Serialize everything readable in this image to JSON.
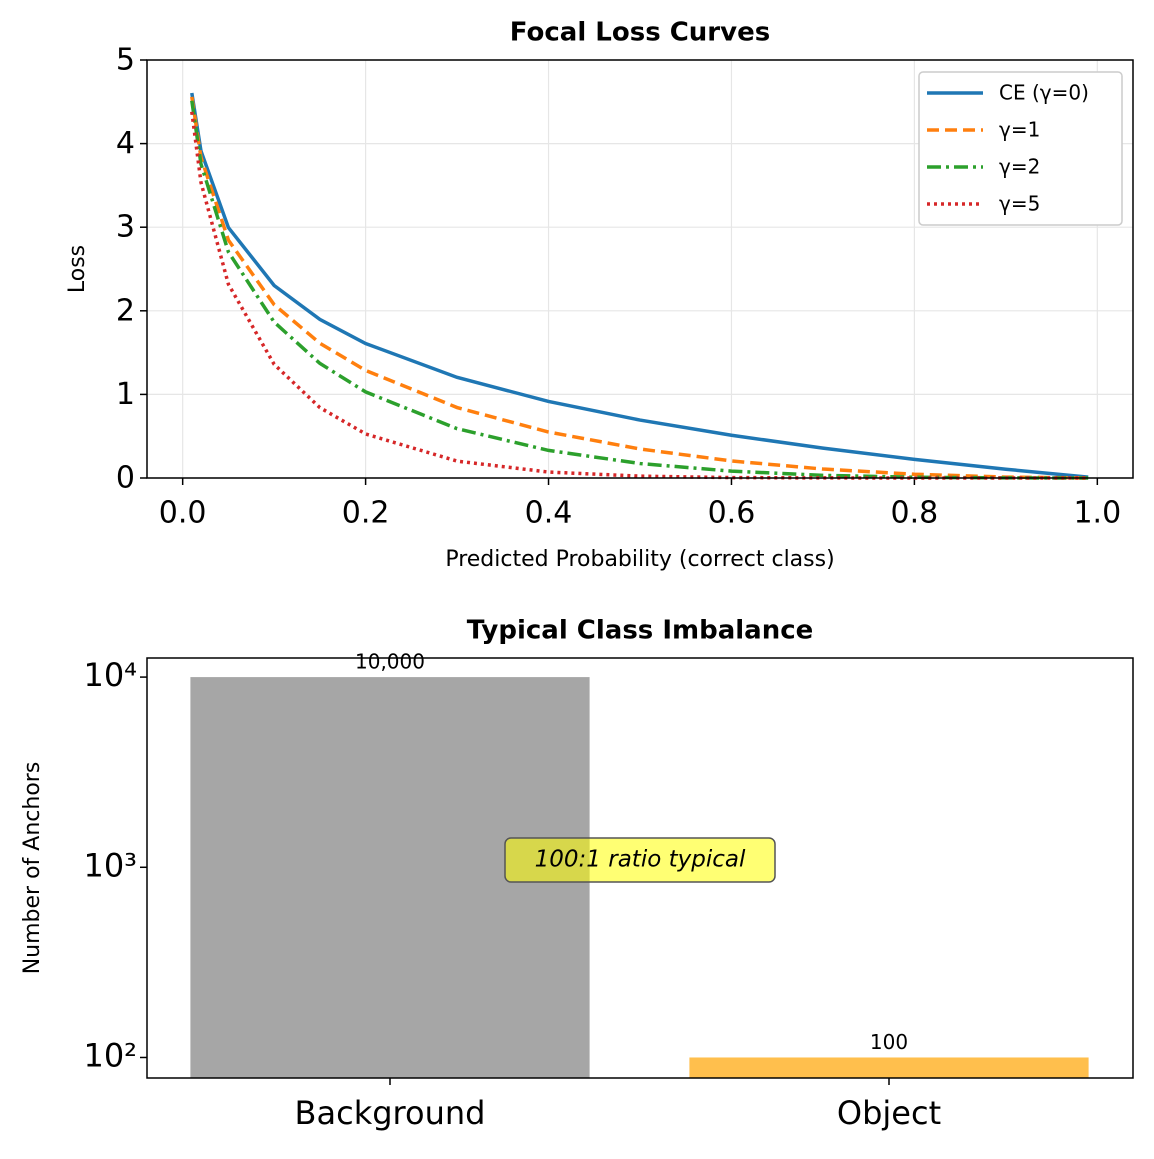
{
  "chart_data": [
    {
      "type": "line",
      "title": "Focal Loss Curves",
      "xlabel": "Predicted Probability (correct class)",
      "ylabel": "Loss",
      "x": [
        0.01,
        0.02,
        0.05,
        0.1,
        0.15,
        0.2,
        0.3,
        0.4,
        0.5,
        0.6,
        0.7,
        0.8,
        0.9,
        0.99
      ],
      "series": [
        {
          "name": "CE (γ=0)",
          "color": "#1f77b4",
          "linestyle": "solid",
          "values": [
            4.605,
            3.912,
            2.996,
            2.303,
            1.897,
            1.609,
            1.204,
            0.916,
            0.693,
            0.511,
            0.357,
            0.223,
            0.105,
            0.01
          ]
        },
        {
          "name": "γ=1",
          "color": "#ff7f0e",
          "linestyle": "dashed",
          "values": [
            4.559,
            3.834,
            2.846,
            2.073,
            1.612,
            1.287,
            0.843,
            0.55,
            0.347,
            0.204,
            0.107,
            0.045,
            0.011,
            0.0001
          ]
        },
        {
          "name": "γ=2",
          "color": "#2ca02c",
          "linestyle": "dashdot",
          "values": [
            4.513,
            3.757,
            2.704,
            1.865,
            1.371,
            1.03,
            0.59,
            0.33,
            0.173,
            0.082,
            0.032,
            0.009,
            0.001,
            0
          ]
        },
        {
          "name": "γ=5",
          "color": "#d62728",
          "linestyle": "dotted",
          "values": [
            4.38,
            3.536,
            2.318,
            1.36,
            0.842,
            0.527,
            0.202,
            0.071,
            0.022,
            0.005,
            0.001,
            0.0001,
            0,
            0
          ]
        }
      ],
      "xlim": [
        -0.039,
        1.039
      ],
      "xticks": [
        {
          "value": 0,
          "label": "0.0"
        },
        0.2,
        0.4,
        0.6,
        0.8,
        {
          "value": 1,
          "label": "1.0"
        }
      ],
      "ylim": [
        0,
        5
      ],
      "yticks": [
        0,
        1,
        2,
        3,
        4,
        5
      ],
      "grid": true,
      "legend": "upper right"
    },
    {
      "type": "bar",
      "title": "Typical Class Imbalance",
      "ylabel": "Number of Anchors",
      "categories": [
        "Background",
        "Object"
      ],
      "values": [
        10000,
        100
      ],
      "value_labels": [
        "10,000",
        "100"
      ],
      "colors": [
        "#a6a6a6",
        "#ffbf4d"
      ],
      "log_scale": true,
      "ylim": [
        78,
        12600
      ],
      "yticks": [
        {
          "value": 100,
          "label": "10²"
        },
        {
          "value": 1000,
          "label": "10³"
        },
        {
          "value": 10000,
          "label": "10⁴"
        }
      ],
      "annotation": "100:1 ratio typical"
    }
  ]
}
